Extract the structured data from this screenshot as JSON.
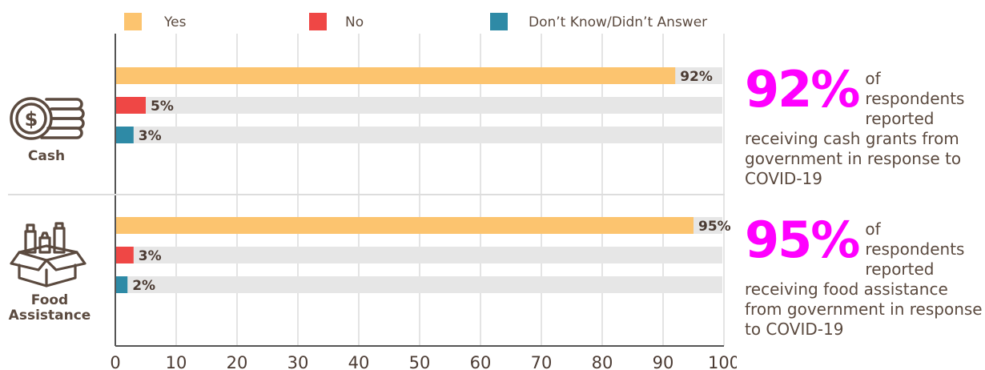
{
  "legend": [
    {
      "label": "Yes",
      "color": "#fcc46f"
    },
    {
      "label": "No",
      "color": "#ef4745"
    },
    {
      "label": "Don’t Know/Didn’t Answer",
      "color": "#2e8aa6"
    }
  ],
  "track_color": "#e6e6e6",
  "chart_data": {
    "type": "bar",
    "orientation": "horizontal",
    "groups": [
      {
        "category": "Cash",
        "icon": "money-stack-icon",
        "values": [
          {
            "series": "Yes",
            "value": 92,
            "label": "92%"
          },
          {
            "series": "No",
            "value": 5,
            "label": "5%"
          },
          {
            "series": "Don’t Know/Didn’t Answer",
            "value": 3,
            "label": "3%"
          }
        ]
      },
      {
        "category": "Food Assistance",
        "icon": "food-box-icon",
        "values": [
          {
            "series": "Yes",
            "value": 95,
            "label": "95%"
          },
          {
            "series": "No",
            "value": 3,
            "label": "3%"
          },
          {
            "series": "Don’t Know/Didn’t Answer",
            "value": 2,
            "label": "2%"
          }
        ]
      }
    ],
    "xlim": [
      0,
      100
    ],
    "xticks": [
      0,
      10,
      20,
      30,
      40,
      50,
      60,
      70,
      80,
      90,
      100
    ],
    "grid": true,
    "legend_position": "top"
  },
  "callouts": [
    {
      "big": "92%",
      "lead": "of respondents reported",
      "rest": "receiving cash grants from government in response to COVID-19",
      "color": "#ff00ff"
    },
    {
      "big": "95%",
      "lead": "of respondents reported",
      "rest": "receiving food assistance from government in response to COVID-19",
      "color": "#ff00ff"
    }
  ]
}
